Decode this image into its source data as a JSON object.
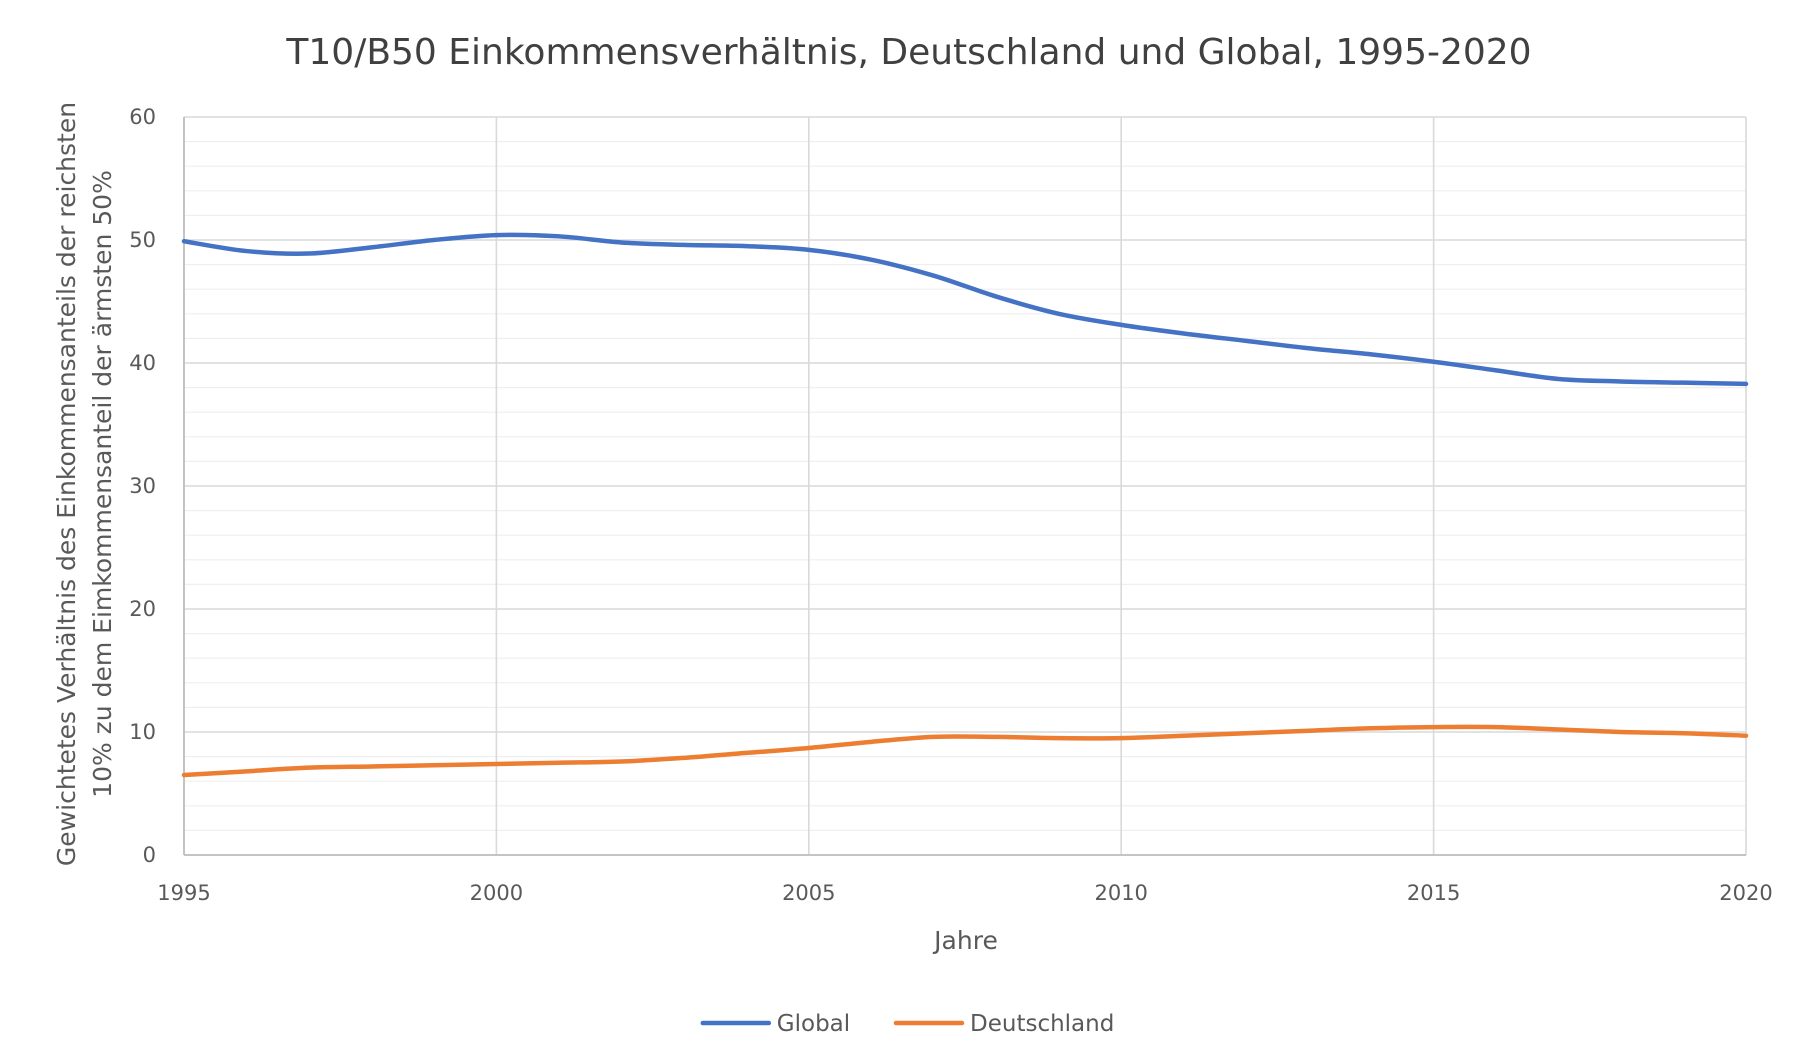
{
  "chart_data": {
    "type": "line",
    "title": "T10/B50 Einkommensverhältnis, Deutschland und Global, 1995-2020",
    "xlabel": "Jahre",
    "ylabel": "Gewichtetes Verhältnis des Einkommensanteils der reichsten 10% zu dem Eimkommensanteil der ärmsten 50%",
    "ylabel_lines": [
      "Gewichtetes Verhältnis des Einkommensanteils der reichsten",
      "10% zu dem Eimkommensanteil der ärmsten 50%"
    ],
    "xlim": [
      1995,
      2020
    ],
    "ylim": [
      0,
      60
    ],
    "x_ticks": [
      1995,
      2000,
      2005,
      2010,
      2015,
      2020
    ],
    "y_ticks": [
      0,
      10,
      20,
      30,
      40,
      50,
      60
    ],
    "y_minor_step": 2,
    "grid": true,
    "smooth": true,
    "legend_position": "bottom",
    "x": [
      1995,
      1996,
      1997,
      1998,
      1999,
      2000,
      2001,
      2002,
      2003,
      2004,
      2005,
      2006,
      2007,
      2008,
      2009,
      2010,
      2011,
      2012,
      2013,
      2014,
      2015,
      2016,
      2017,
      2018,
      2019,
      2020
    ],
    "series": [
      {
        "name": "Global",
        "color": "#4472C4",
        "values": [
          49.9,
          49.1,
          48.9,
          49.4,
          50.0,
          50.4,
          50.3,
          49.8,
          49.6,
          49.5,
          49.2,
          48.4,
          47.1,
          45.4,
          44.0,
          43.1,
          42.4,
          41.8,
          41.2,
          40.7,
          40.1,
          39.4,
          38.7,
          38.5,
          38.4,
          38.3
        ]
      },
      {
        "name": "Deutschland",
        "color": "#ED7D31",
        "values": [
          6.5,
          6.8,
          7.1,
          7.2,
          7.3,
          7.4,
          7.5,
          7.6,
          7.9,
          8.3,
          8.7,
          9.2,
          9.6,
          9.6,
          9.5,
          9.5,
          9.7,
          9.9,
          10.1,
          10.3,
          10.4,
          10.4,
          10.2,
          10.0,
          9.9,
          9.7
        ]
      }
    ]
  }
}
